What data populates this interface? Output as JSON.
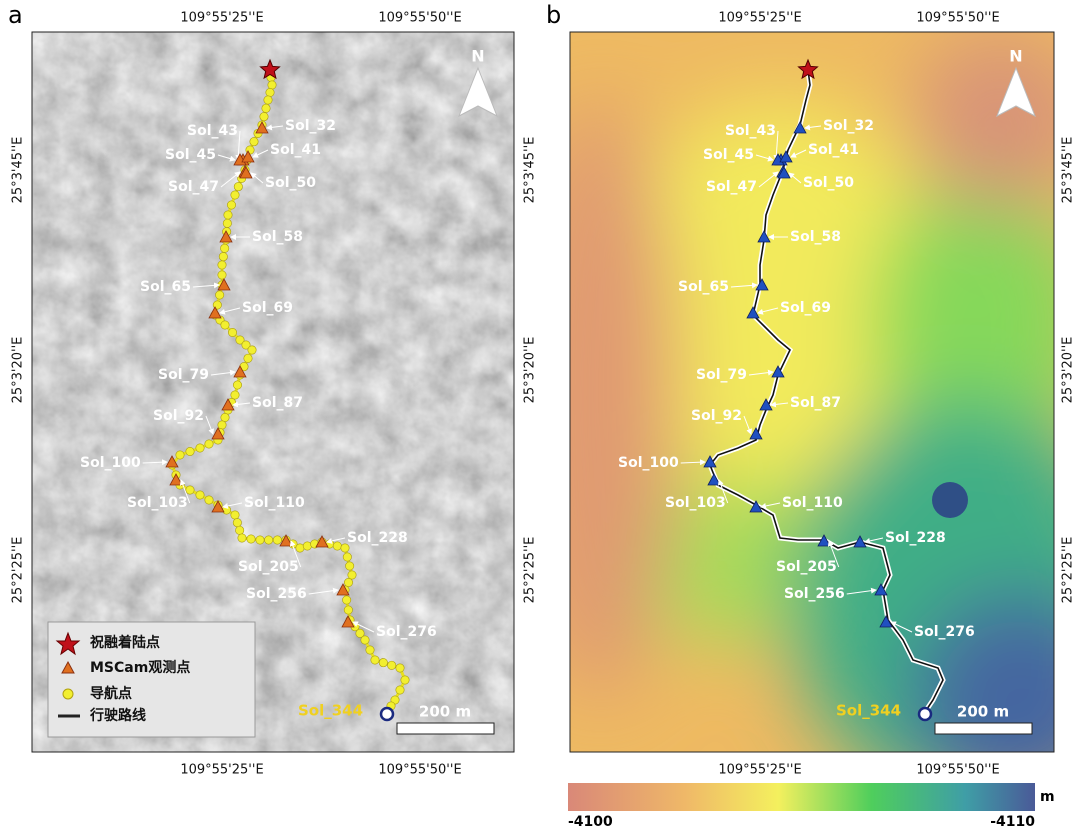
{
  "panels": [
    {
      "label": "a"
    },
    {
      "label": "b"
    }
  ],
  "longitude_labels": [
    "109°55'25''E",
    "109°55'50''E"
  ],
  "latitude_labels": [
    "25°3'45''E",
    "25°3'20''E",
    "25°2'25''E"
  ],
  "sols": [
    "Sol_32",
    "Sol_43",
    "Sol_45",
    "Sol_41",
    "Sol_47",
    "Sol_50",
    "Sol_58",
    "Sol_65",
    "Sol_69",
    "Sol_79",
    "Sol_87",
    "Sol_92",
    "Sol_100",
    "Sol_103",
    "Sol_110",
    "Sol_205",
    "Sol_228",
    "Sol_256",
    "Sol_276"
  ],
  "end_label": "Sol_344",
  "north": "N",
  "scale_bar": "200 m",
  "legend": [
    "祝融着陆点",
    "MSCam观测点",
    "导航点",
    "行驶路线"
  ],
  "colorbar": {
    "min": -4100,
    "max": -4110,
    "unit": "m"
  }
}
